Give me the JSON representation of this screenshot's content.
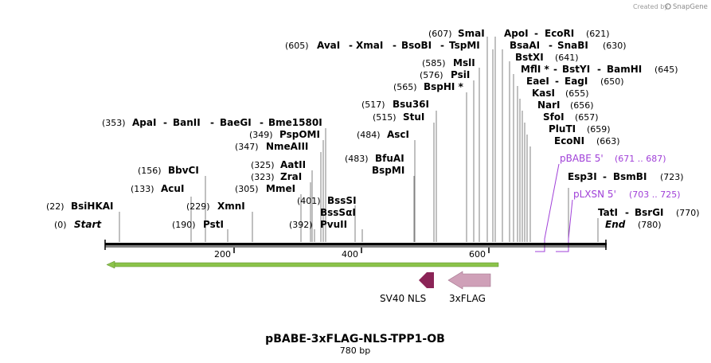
{
  "credit": {
    "prefix": "Created by",
    "brand": "SnapGene"
  },
  "map": {
    "name": "pBABE-3xFLAG-NLS-TPP1-OB",
    "length_label": "780 bp",
    "ruler_ticks": [
      "200",
      "400",
      "600"
    ]
  },
  "sites": [
    {
      "id": "smai",
      "pos": "(607)",
      "names": [
        "SmaI"
      ]
    },
    {
      "id": "apoi",
      "pos": "(621)",
      "names": [
        "ApoI",
        "EcoRI"
      ],
      "pos_after": true
    },
    {
      "id": "avai",
      "pos": "(605)",
      "names": [
        "AvaI",
        "XmaI",
        "BsoBI",
        "TspMI"
      ]
    },
    {
      "id": "bsaai",
      "pos": "(630)",
      "names": [
        "BsaAI",
        "SnaBI"
      ],
      "pos_after": true
    },
    {
      "id": "bstxi",
      "pos": "(641)",
      "names": [
        "BstXI"
      ],
      "pos_after": true
    },
    {
      "id": "msli",
      "pos": "(585)",
      "names": [
        "MslI"
      ]
    },
    {
      "id": "mfli",
      "pos": "(645)",
      "names": [
        "MflI *",
        "BstYI",
        "BamHI"
      ],
      "pos_after": true
    },
    {
      "id": "psii",
      "pos": "(576)",
      "names": [
        "PsiI"
      ]
    },
    {
      "id": "eaei",
      "pos": "(650)",
      "names": [
        "EaeI",
        "EagI"
      ],
      "pos_after": true
    },
    {
      "id": "bsphi",
      "pos": "(565)",
      "names": [
        "BspHI *"
      ]
    },
    {
      "id": "kasi",
      "pos": "(655)",
      "names": [
        "KasI"
      ],
      "pos_after": true
    },
    {
      "id": "bsu36i",
      "pos": "(517)",
      "names": [
        "Bsu36I"
      ]
    },
    {
      "id": "nari",
      "pos": "(656)",
      "names": [
        "NarI"
      ],
      "pos_after": true
    },
    {
      "id": "stui",
      "pos": "(515)",
      "names": [
        "StuI"
      ]
    },
    {
      "id": "sfoi",
      "pos": "(657)",
      "names": [
        "SfoI"
      ],
      "pos_after": true
    },
    {
      "id": "apai",
      "pos": "(353)",
      "names": [
        "ApaI",
        "BanII",
        "BaeGI",
        "Bme1580I"
      ]
    },
    {
      "id": "pluti",
      "pos": "(659)",
      "names": [
        "PluTI"
      ],
      "pos_after": true
    },
    {
      "id": "pspomi",
      "pos": "(349)",
      "names": [
        "PspOMI"
      ]
    },
    {
      "id": "asci",
      "pos": "(484)",
      "names": [
        "AscI"
      ]
    },
    {
      "id": "econi",
      "pos": "(663)",
      "names": [
        "EcoNI"
      ],
      "pos_after": true
    },
    {
      "id": "nmeaiii",
      "pos": "(347)",
      "names": [
        "NmeAIII"
      ]
    },
    {
      "id": "bfuai",
      "pos": "(483)",
      "names": [
        "BfuAI"
      ]
    },
    {
      "id": "bspmi",
      "pos": "",
      "names": [
        "BspMI"
      ]
    },
    {
      "id": "aatii",
      "pos": "(325)",
      "names": [
        "AatII"
      ]
    },
    {
      "id": "bbvci",
      "pos": "(156)",
      "names": [
        "BbvCI"
      ]
    },
    {
      "id": "esp3i",
      "pos": "(723)",
      "names": [
        "Esp3I",
        "BsmBI"
      ],
      "pos_after": true
    },
    {
      "id": "zrai",
      "pos": "(323)",
      "names": [
        "ZraI"
      ]
    },
    {
      "id": "acui",
      "pos": "(133)",
      "names": [
        "AcuI"
      ]
    },
    {
      "id": "mmei",
      "pos": "(305)",
      "names": [
        "MmeI"
      ]
    },
    {
      "id": "bsssi",
      "pos": "(401)",
      "names": [
        "BssSI"
      ]
    },
    {
      "id": "bsshkai",
      "pos": "(22)",
      "names": [
        "BsiHKAI"
      ]
    },
    {
      "id": "xmni",
      "pos": "(229)",
      "names": [
        "XmnI"
      ]
    },
    {
      "id": "bsssai",
      "pos": "",
      "names": [
        "BssSαI"
      ]
    },
    {
      "id": "tati",
      "pos": "(770)",
      "names": [
        "TatI",
        "BsrGI"
      ],
      "pos_after": true
    },
    {
      "id": "start",
      "pos": "(0)",
      "names": [
        "Start"
      ],
      "italic": true
    },
    {
      "id": "psti",
      "pos": "(190)",
      "names": [
        "PstI"
      ]
    },
    {
      "id": "pvuii",
      "pos": "(392)",
      "names": [
        "PvuII"
      ]
    },
    {
      "id": "end",
      "pos": "(780)",
      "names": [
        "End"
      ],
      "italic": true,
      "pos_after": true
    }
  ],
  "primers": [
    {
      "name": "pBABE 5'",
      "range": "(671 .. 687)"
    },
    {
      "name": "pLXSN 5'",
      "range": "(703 .. 725)"
    }
  ],
  "features": [
    {
      "name": "SV40 NLS",
      "color": "#8b2457"
    },
    {
      "name": "3xFLAG",
      "color": "#cfa0b8"
    }
  ],
  "colors": {
    "backbone": "#000000",
    "orf_arrow": "#8bc34a",
    "primer": "#a040d8",
    "leader": "#7a7a7a"
  }
}
